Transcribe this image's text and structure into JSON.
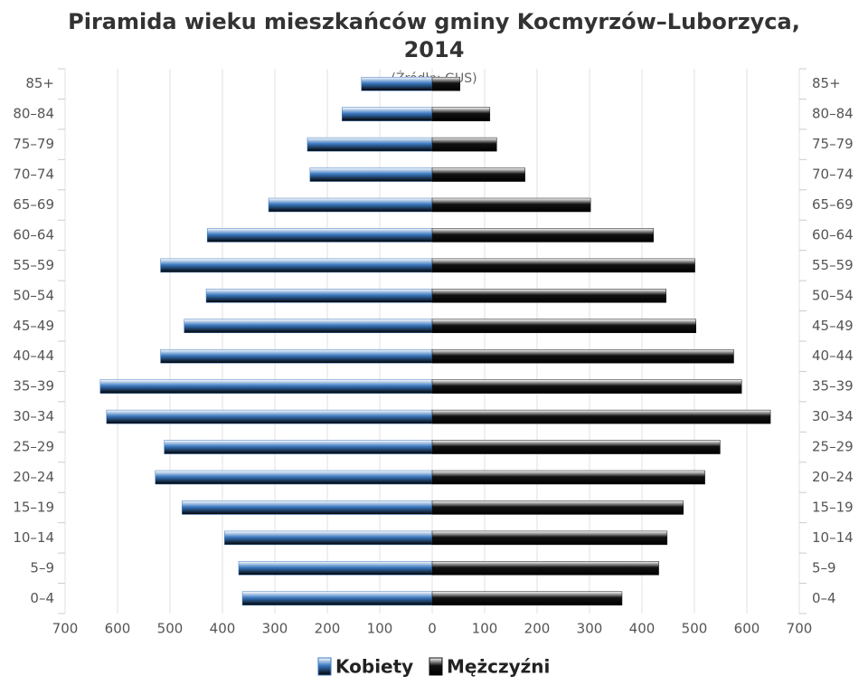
{
  "chart_data": {
    "type": "pyramid",
    "title": [
      "Piramida wieku mieszkańców gminy Kocmyrzów–Luborzyca,",
      "2014"
    ],
    "subtitle": "(Źródło: GUS)",
    "categories": [
      "0–4",
      "5–9",
      "10–14",
      "15–19",
      "20–24",
      "25–29",
      "30–34",
      "35–39",
      "40–44",
      "45–49",
      "50–54",
      "55–59",
      "60–64",
      "65–69",
      "70–74",
      "75–79",
      "80–84",
      "85+"
    ],
    "series": [
      {
        "name": "Kobiety",
        "color": "#3a78c0",
        "values": [
          -362,
          -369,
          -396,
          -477,
          -528,
          -511,
          -621,
          -633,
          -518,
          -473,
          -431,
          -518,
          -429,
          -312,
          -233,
          -238,
          -172,
          -135
        ]
      },
      {
        "name": "Mężczyźni",
        "color": "#111111",
        "values": [
          362,
          432,
          448,
          479,
          520,
          549,
          645,
          590,
          575,
          503,
          446,
          501,
          422,
          302,
          177,
          123,
          110,
          53
        ]
      }
    ],
    "xlim": [
      -700,
      700
    ],
    "xticks": [
      {
        "value": -700,
        "label": "700"
      },
      {
        "value": -600,
        "label": "600"
      },
      {
        "value": -500,
        "label": "500"
      },
      {
        "value": -400,
        "label": "400"
      },
      {
        "value": -300,
        "label": "300"
      },
      {
        "value": -200,
        "label": "200"
      },
      {
        "value": -100,
        "label": "100"
      },
      0,
      100,
      200,
      300,
      400,
      500,
      600,
      700
    ],
    "grid": true
  }
}
